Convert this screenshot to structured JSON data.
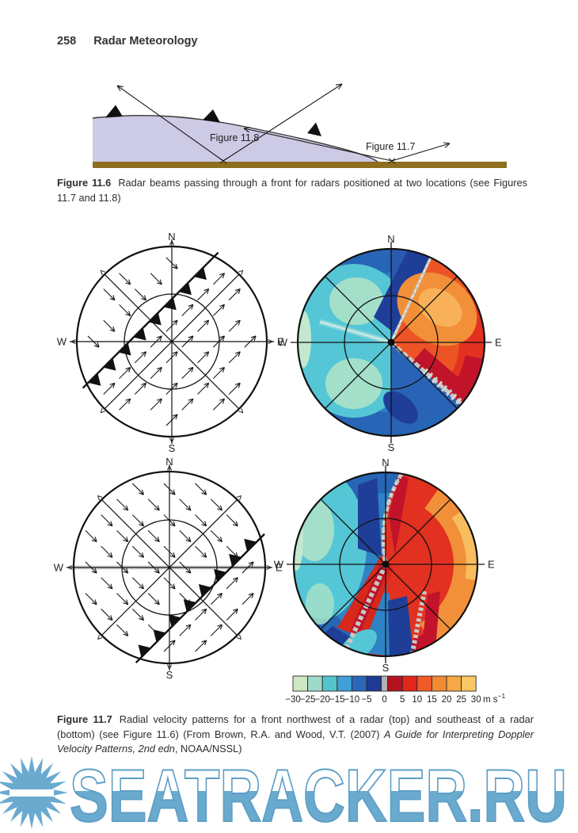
{
  "page": {
    "number": "258",
    "title": "Radar Meteorology"
  },
  "figure_11_6": {
    "caption_label": "Figure 11.6",
    "caption_text": "Radar beams passing through a front for radars positioned at two locations (see Figures 11.7 and 11.8)",
    "label_left_beam": "Figure 11.8",
    "label_right_beam": "Figure 11.7",
    "colors": {
      "air_mass": "#cdcae5",
      "air_outline": "#3a3a3a",
      "ground": "#8d6e1e",
      "ink": "#1a1a1a"
    }
  },
  "figure_11_7": {
    "caption_label": "Figure 11.7",
    "caption_text_1": "Radial velocity patterns for a front northwest of a radar (top) and southeast of a radar (bottom) (see Figure 11.6) (From Brown, R.A. and Wood, V.T. (2007) ",
    "caption_italic": "A Guide for Interpreting Doppler Velocity Patterns, 2nd edn",
    "caption_text_2": ", NOAA/NSSL)",
    "compass": {
      "n": "N",
      "s": "S",
      "e": "E",
      "w": "W"
    },
    "colorbar": {
      "tick_labels": [
        "−30",
        "−25",
        "−20",
        "−15",
        "−10",
        "−5",
        "0",
        "5",
        "10",
        "15",
        "20",
        "25",
        "30"
      ],
      "unit_base": "m s",
      "unit_sup": "−1",
      "cell_colors": [
        "#cfe7c2",
        "#9fd9c9",
        "#54c4cc",
        "#3f9fd6",
        "#2b66bb",
        "#1e3a92",
        "#b3b3b3",
        "#b5121f",
        "#e3261b",
        "#ef5b28",
        "#f08a33",
        "#f5a845",
        "#f9c765"
      ]
    },
    "doppler_colors": {
      "base_blue": "#2f82c5",
      "rim_blue": "#2765b6",
      "cyan": "#55c6d5",
      "pale_teal": "#a4dfca",
      "palest": "#c2e8cf",
      "navy": "#1f3e97",
      "warm_red": "#ec5426",
      "red": "#e23120",
      "crimson": "#c1142a",
      "orange": "#f29039",
      "light_orange": "#f8b158",
      "pale_orange": "#f7bd5e",
      "zero_gray": "#c8c8c2",
      "dark_blue2": "#2a5ab0",
      "mid_blue2": "#2963b6"
    }
  },
  "watermark": {
    "text": "SEATRACKER.RU",
    "color": "#6aaace",
    "stroke": "#5d9ec6"
  }
}
